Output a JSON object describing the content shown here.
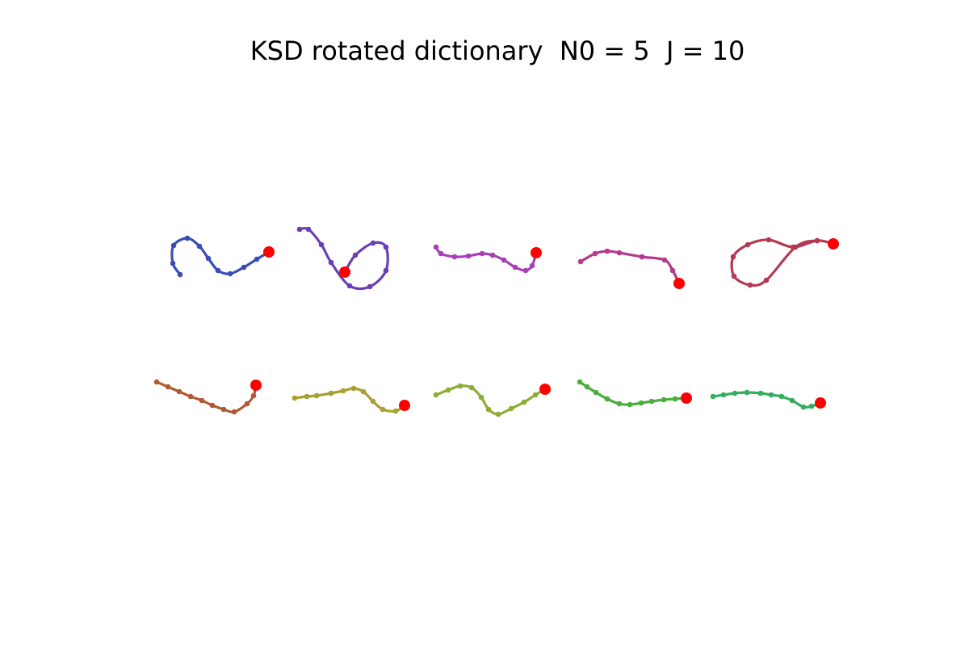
{
  "figure": {
    "title": "KSD rotated dictionary  N0 = 5  J = 10",
    "endpoint_color": "#ff0000"
  },
  "atoms": [
    {
      "color": "#3a4db4"
    },
    {
      "color": "#6a3fb4"
    },
    {
      "color": "#a83fb4"
    },
    {
      "color": "#b43a8e"
    },
    {
      "color": "#b43a52"
    },
    {
      "color": "#b05a34"
    },
    {
      "color": "#a8a032"
    },
    {
      "color": "#8cae34"
    },
    {
      "color": "#4cae3a"
    },
    {
      "color": "#34ae5e"
    }
  ]
}
